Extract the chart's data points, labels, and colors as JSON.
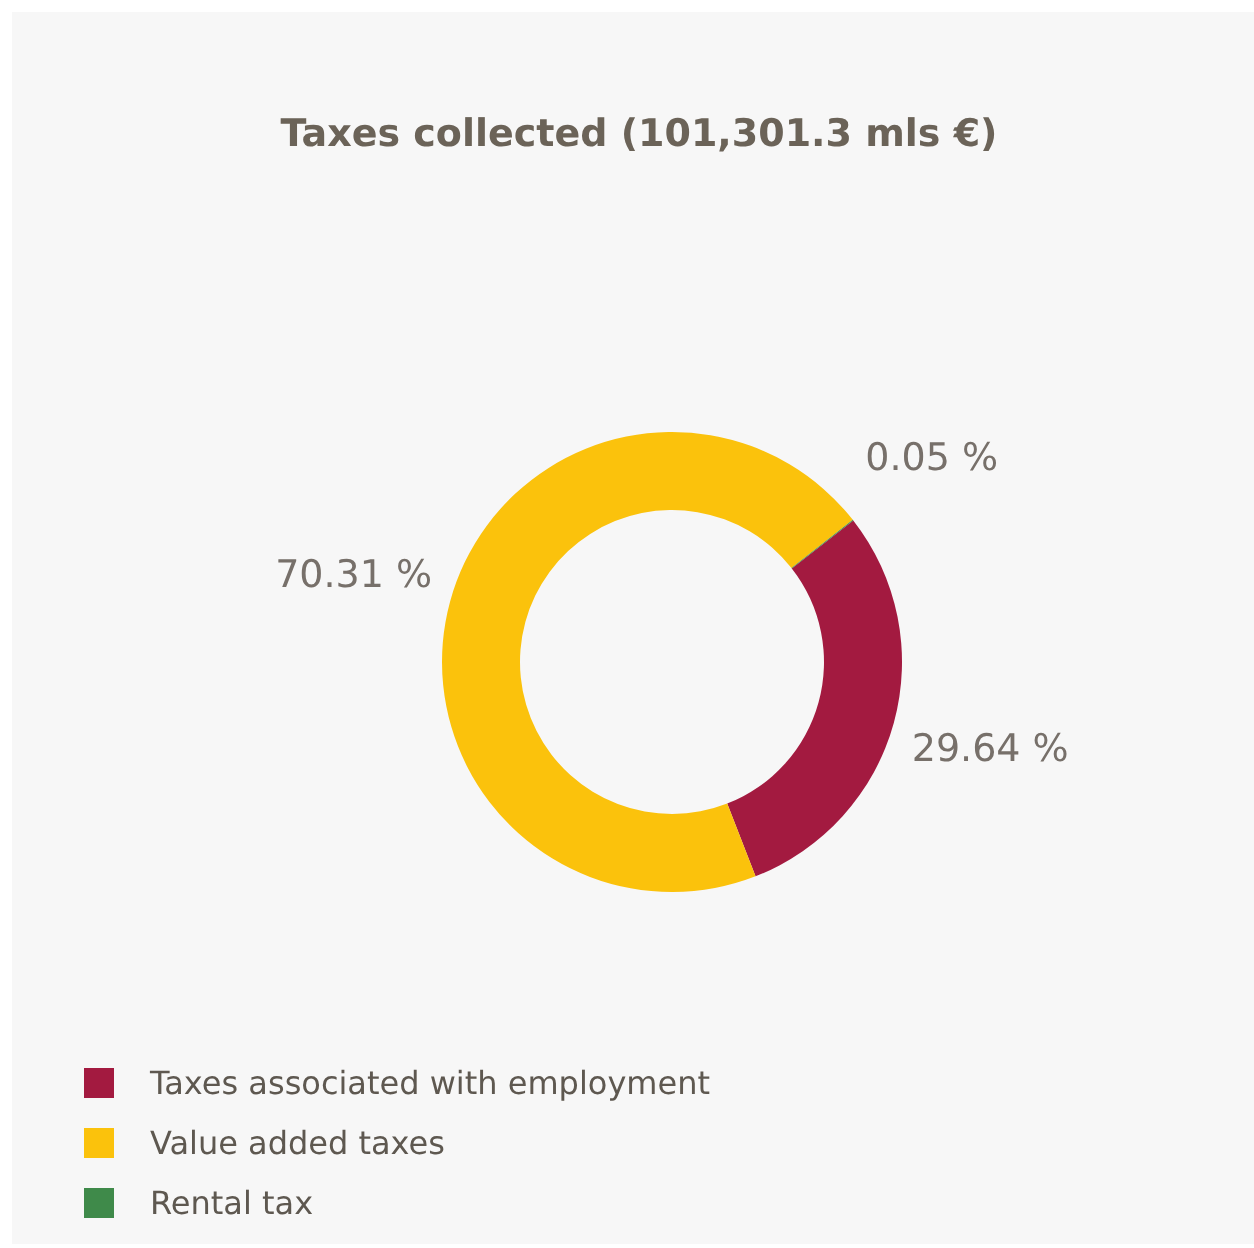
{
  "chart_data": {
    "type": "donut",
    "title": "Taxes collected (101,301.3 mls €)",
    "categories": [
      "Taxes associated with employment",
      "Value added taxes",
      "Rental tax"
    ],
    "values": [
      29.64,
      70.31,
      0.05
    ],
    "colors": [
      "#a31a40",
      "#fbc20c",
      "#3f8a4a"
    ],
    "value_labels": [
      "29.64 %",
      "70.31 %",
      "0.05 %"
    ],
    "legend": "bottom left"
  }
}
